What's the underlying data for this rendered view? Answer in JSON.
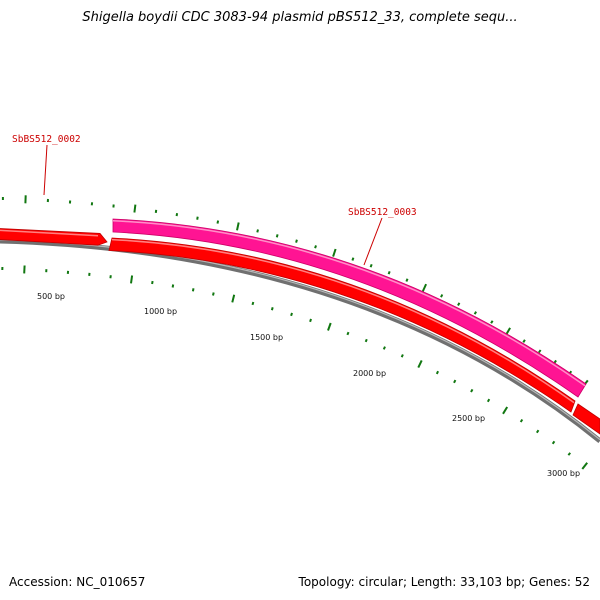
{
  "title": "Shigella boydii CDC 3083-94 plasmid pBS512_33, complete sequ...",
  "footer": {
    "accession": "Accession: NC_010657",
    "summary": "Topology: circular; Length: 33,103 bp; Genes: 52"
  },
  "map": {
    "ruler_ticks": [
      "500 bp",
      "1000 bp",
      "1500 bp",
      "2000 bp",
      "2500 bp",
      "3000 bp"
    ],
    "genes": [
      {
        "name": "SbBS512_0002",
        "strand": "reverse",
        "color": "#ff0000"
      },
      {
        "name": "SbBS512_0003",
        "strand": "forward",
        "color": "#ff1493"
      }
    ],
    "colors": {
      "reverse_gene": "#ff0000",
      "forward_gene": "#ff1493",
      "backbone": "#808080",
      "gc_ticks": "#117711",
      "gene_label": "#cc0000"
    }
  }
}
